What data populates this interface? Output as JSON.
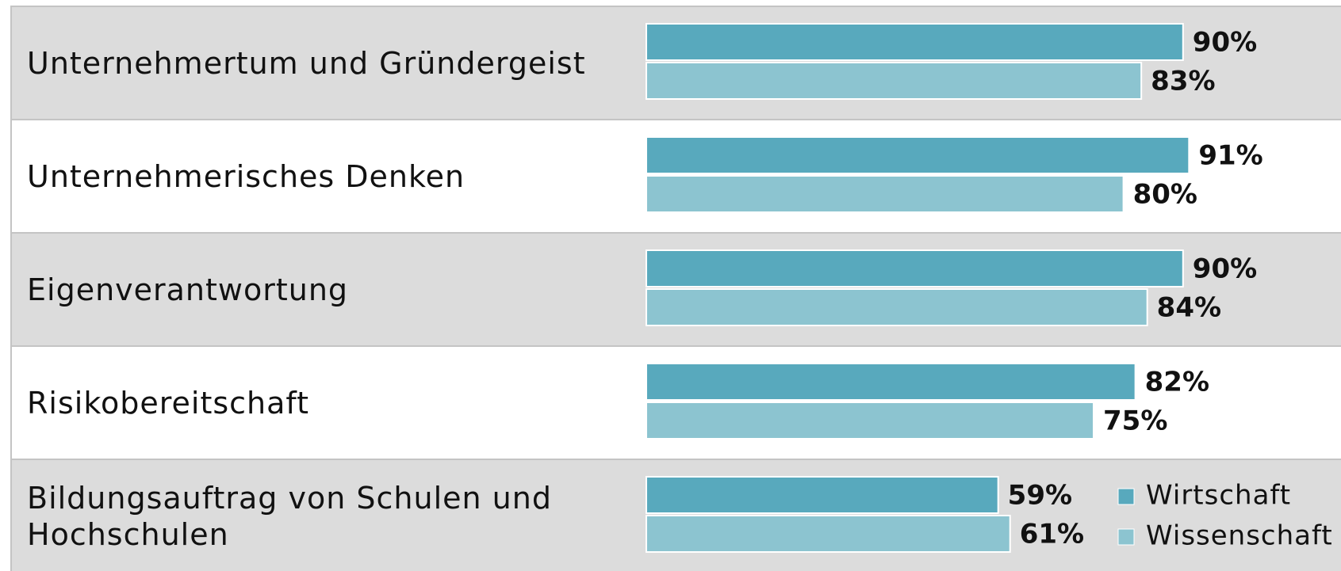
{
  "chart_data": {
    "type": "bar",
    "orientation": "horizontal",
    "categories": [
      "Unternehmertum und Gründergeist",
      "Unternehmerisches Denken",
      "Eigenverantwortung",
      "Risikobereitschaft",
      "Bildungsauftrag von Schulen und Hochschulen"
    ],
    "series": [
      {
        "name": "Wirtschaft",
        "color": "#58a9bd",
        "values": [
          90,
          91,
          90,
          82,
          59
        ],
        "value_labels": [
          "90%",
          "91%",
          "90%",
          "82%",
          "59%"
        ]
      },
      {
        "name": "Wissenschaft",
        "color": "#8cc4d0",
        "values": [
          83,
          80,
          84,
          75,
          61
        ],
        "value_labels": [
          "83%",
          "80%",
          "84%",
          "75%",
          "61%"
        ]
      }
    ],
    "xlim": [
      0,
      100
    ]
  }
}
